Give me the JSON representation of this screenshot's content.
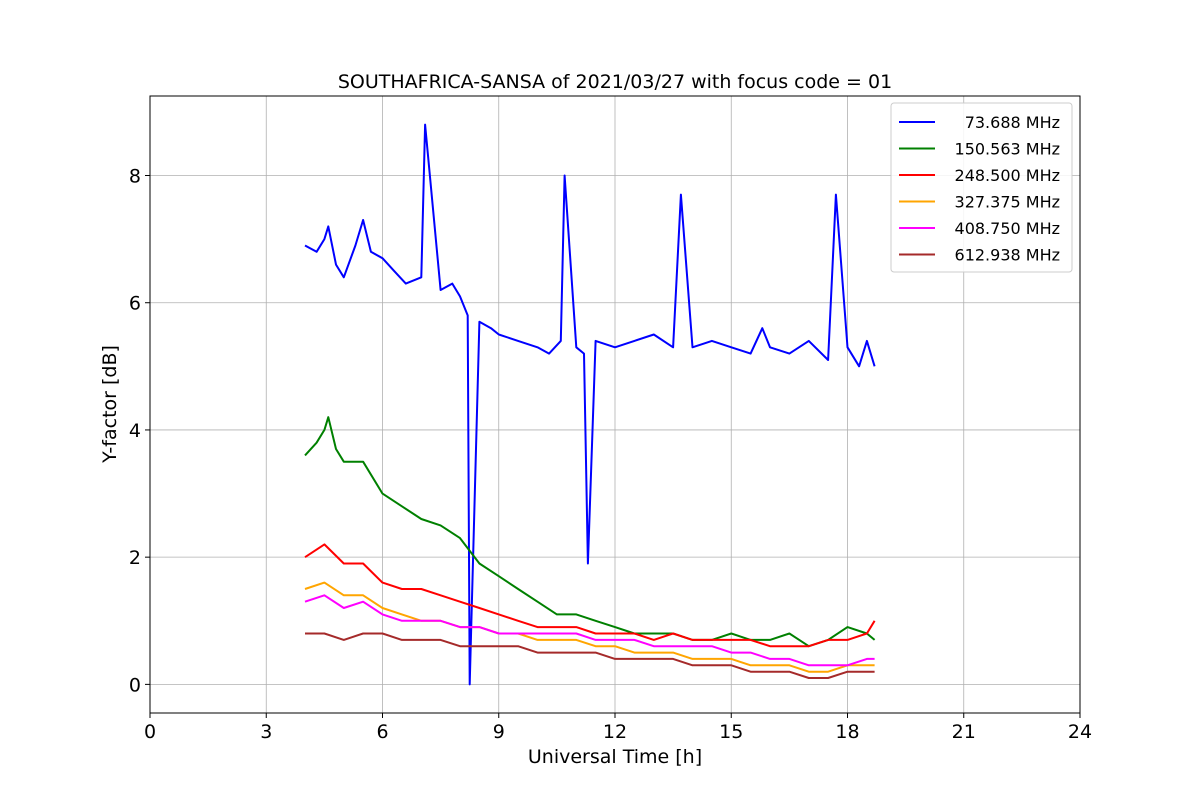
{
  "chart_data": {
    "type": "line",
    "title": "SOUTHAFRICA-SANSA of 2021/03/27 with focus code = 01",
    "xlabel": "Universal Time [h]",
    "ylabel": "Y-factor [dB]",
    "xlim": [
      0,
      24
    ],
    "ylim": [
      -0.45,
      9.25
    ],
    "xticks": [
      0,
      3,
      6,
      9,
      12,
      15,
      18,
      21,
      24
    ],
    "yticks": [
      0,
      2,
      4,
      6,
      8
    ],
    "grid": true,
    "legend_position": "top-right",
    "series": [
      {
        "name": "73.688 MHz",
        "color": "#0000ff",
        "x": [
          4.0,
          4.3,
          4.5,
          4.6,
          4.8,
          5.0,
          5.3,
          5.5,
          5.7,
          6.0,
          6.3,
          6.6,
          7.0,
          7.1,
          7.5,
          7.8,
          8.0,
          8.2,
          8.25,
          8.5,
          8.8,
          9.0,
          9.5,
          10.0,
          10.3,
          10.6,
          10.7,
          11.0,
          11.2,
          11.3,
          11.5,
          12.0,
          12.5,
          13.0,
          13.5,
          13.7,
          14.0,
          14.5,
          15.0,
          15.5,
          15.8,
          16.0,
          16.5,
          17.0,
          17.5,
          17.7,
          18.0,
          18.3,
          18.5,
          18.7
        ],
        "y": [
          6.9,
          6.8,
          7.0,
          7.2,
          6.6,
          6.4,
          6.9,
          7.3,
          6.8,
          6.7,
          6.5,
          6.3,
          6.4,
          8.8,
          6.2,
          6.3,
          6.1,
          5.8,
          0.0,
          5.7,
          5.6,
          5.5,
          5.4,
          5.3,
          5.2,
          5.4,
          8.0,
          5.3,
          5.2,
          1.9,
          5.4,
          5.3,
          5.4,
          5.5,
          5.3,
          7.7,
          5.3,
          5.4,
          5.3,
          5.2,
          5.6,
          5.3,
          5.2,
          5.4,
          5.1,
          7.7,
          5.3,
          5.0,
          5.4,
          5.0
        ]
      },
      {
        "name": "150.563 MHz",
        "color": "#008000",
        "x": [
          4.0,
          4.3,
          4.5,
          4.6,
          4.8,
          5.0,
          5.5,
          6.0,
          6.5,
          7.0,
          7.5,
          8.0,
          8.5,
          9.0,
          9.5,
          10.0,
          10.5,
          11.0,
          11.5,
          12.0,
          12.5,
          13.0,
          13.5,
          14.0,
          14.5,
          15.0,
          15.5,
          16.0,
          16.5,
          17.0,
          17.5,
          18.0,
          18.5,
          18.7
        ],
        "y": [
          3.6,
          3.8,
          4.0,
          4.2,
          3.7,
          3.5,
          3.5,
          3.0,
          2.8,
          2.6,
          2.5,
          2.3,
          1.9,
          1.7,
          1.5,
          1.3,
          1.1,
          1.1,
          1.0,
          0.9,
          0.8,
          0.8,
          0.8,
          0.7,
          0.7,
          0.8,
          0.7,
          0.7,
          0.8,
          0.6,
          0.7,
          0.9,
          0.8,
          0.7
        ]
      },
      {
        "name": "248.500 MHz",
        "color": "#ff0000",
        "x": [
          4.0,
          4.5,
          5.0,
          5.5,
          6.0,
          6.5,
          7.0,
          7.5,
          8.0,
          8.5,
          9.0,
          9.5,
          10.0,
          10.5,
          11.0,
          11.5,
          12.0,
          12.5,
          13.0,
          13.5,
          14.0,
          14.5,
          15.0,
          15.5,
          16.0,
          16.5,
          17.0,
          17.5,
          18.0,
          18.5,
          18.7
        ],
        "y": [
          2.0,
          2.2,
          1.9,
          1.9,
          1.6,
          1.5,
          1.5,
          1.4,
          1.3,
          1.2,
          1.1,
          1.0,
          0.9,
          0.9,
          0.9,
          0.8,
          0.8,
          0.8,
          0.7,
          0.8,
          0.7,
          0.7,
          0.7,
          0.7,
          0.6,
          0.6,
          0.6,
          0.7,
          0.7,
          0.8,
          1.0
        ]
      },
      {
        "name": "327.375 MHz",
        "color": "#ffa500",
        "x": [
          4.0,
          4.5,
          5.0,
          5.5,
          6.0,
          6.5,
          7.0,
          7.5,
          8.0,
          8.5,
          9.0,
          9.5,
          10.0,
          10.5,
          11.0,
          11.5,
          12.0,
          12.5,
          13.0,
          13.5,
          14.0,
          14.5,
          15.0,
          15.5,
          16.0,
          16.5,
          17.0,
          17.5,
          18.0,
          18.5,
          18.7
        ],
        "y": [
          1.5,
          1.6,
          1.4,
          1.4,
          1.2,
          1.1,
          1.0,
          1.0,
          0.9,
          0.9,
          0.8,
          0.8,
          0.7,
          0.7,
          0.7,
          0.6,
          0.6,
          0.5,
          0.5,
          0.5,
          0.4,
          0.4,
          0.4,
          0.3,
          0.3,
          0.3,
          0.2,
          0.2,
          0.3,
          0.3,
          0.3
        ]
      },
      {
        "name": "408.750 MHz",
        "color": "#ff00ff",
        "x": [
          4.0,
          4.5,
          5.0,
          5.5,
          6.0,
          6.5,
          7.0,
          7.5,
          8.0,
          8.5,
          9.0,
          9.5,
          10.0,
          10.5,
          11.0,
          11.5,
          12.0,
          12.5,
          13.0,
          13.5,
          14.0,
          14.5,
          15.0,
          15.5,
          16.0,
          16.5,
          17.0,
          17.5,
          18.0,
          18.5,
          18.7
        ],
        "y": [
          1.3,
          1.4,
          1.2,
          1.3,
          1.1,
          1.0,
          1.0,
          1.0,
          0.9,
          0.9,
          0.8,
          0.8,
          0.8,
          0.8,
          0.8,
          0.7,
          0.7,
          0.7,
          0.6,
          0.6,
          0.6,
          0.6,
          0.5,
          0.5,
          0.4,
          0.4,
          0.3,
          0.3,
          0.3,
          0.4,
          0.4
        ]
      },
      {
        "name": "612.938 MHz",
        "color": "#a52a2a",
        "x": [
          4.0,
          4.5,
          5.0,
          5.5,
          6.0,
          6.5,
          7.0,
          7.5,
          8.0,
          8.5,
          9.0,
          9.5,
          10.0,
          10.5,
          11.0,
          11.5,
          12.0,
          12.5,
          13.0,
          13.5,
          14.0,
          14.5,
          15.0,
          15.5,
          16.0,
          16.5,
          17.0,
          17.5,
          18.0,
          18.5,
          18.7
        ],
        "y": [
          0.8,
          0.8,
          0.7,
          0.8,
          0.8,
          0.7,
          0.7,
          0.7,
          0.6,
          0.6,
          0.6,
          0.6,
          0.5,
          0.5,
          0.5,
          0.5,
          0.4,
          0.4,
          0.4,
          0.4,
          0.3,
          0.3,
          0.3,
          0.2,
          0.2,
          0.2,
          0.1,
          0.1,
          0.2,
          0.2,
          0.2
        ]
      }
    ]
  }
}
